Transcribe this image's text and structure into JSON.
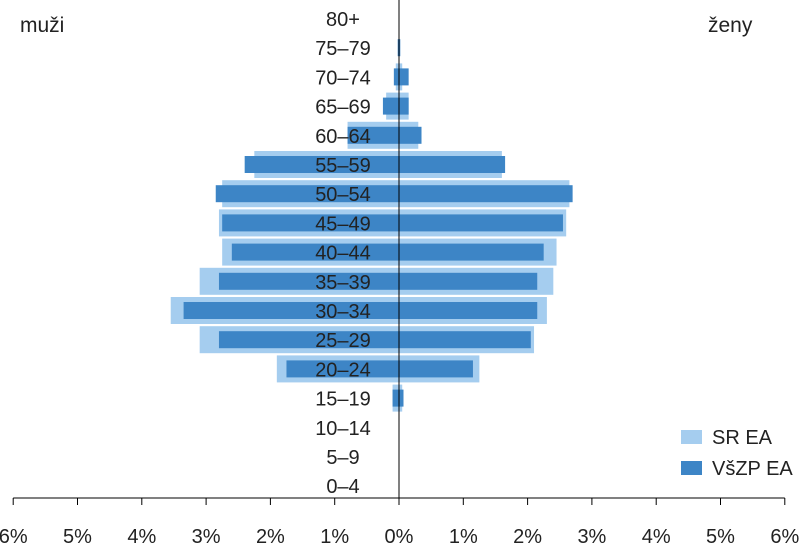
{
  "chart_data": {
    "type": "bar",
    "orientation": "horizontal-pyramid",
    "title": "",
    "left_label": "muži",
    "right_label": "ženy",
    "categories": [
      "80+",
      "75–79",
      "70–74",
      "65–69",
      "60–64",
      "55–59",
      "50–54",
      "45–49",
      "40–44",
      "35–39",
      "30–34",
      "25–29",
      "20–24",
      "15–19",
      "10–14",
      "5–9",
      "0–4"
    ],
    "x_ticks": [
      "6%",
      "5%",
      "4%",
      "3%",
      "2%",
      "1%",
      "0%",
      "1%",
      "2%",
      "3%",
      "4%",
      "5%",
      "6%"
    ],
    "xlim": [
      -6,
      6
    ],
    "grid": false,
    "legend_position": "bottom-right",
    "series": [
      {
        "name": "SR EA",
        "color": "#a5cdef",
        "men": [
          0,
          0,
          0.05,
          0.2,
          0.8,
          2.25,
          2.75,
          2.8,
          2.75,
          3.1,
          3.55,
          3.1,
          1.9,
          0.1,
          0,
          0,
          0
        ],
        "women": [
          0,
          0,
          0.05,
          0.15,
          0.3,
          1.6,
          2.65,
          2.6,
          2.45,
          2.4,
          2.3,
          2.1,
          1.25,
          0.05,
          0,
          0,
          0
        ]
      },
      {
        "name": "VšZP EA",
        "color": "#3d85c6",
        "men": [
          0,
          0.02,
          0.08,
          0.25,
          0.8,
          2.4,
          2.85,
          2.75,
          2.6,
          2.8,
          3.35,
          2.8,
          1.75,
          0.1,
          0,
          0,
          0
        ],
        "women": [
          0,
          0.02,
          0.15,
          0.15,
          0.35,
          1.65,
          2.7,
          2.55,
          2.25,
          2.15,
          2.15,
          2.05,
          1.15,
          0.07,
          0,
          0,
          0
        ]
      }
    ]
  }
}
